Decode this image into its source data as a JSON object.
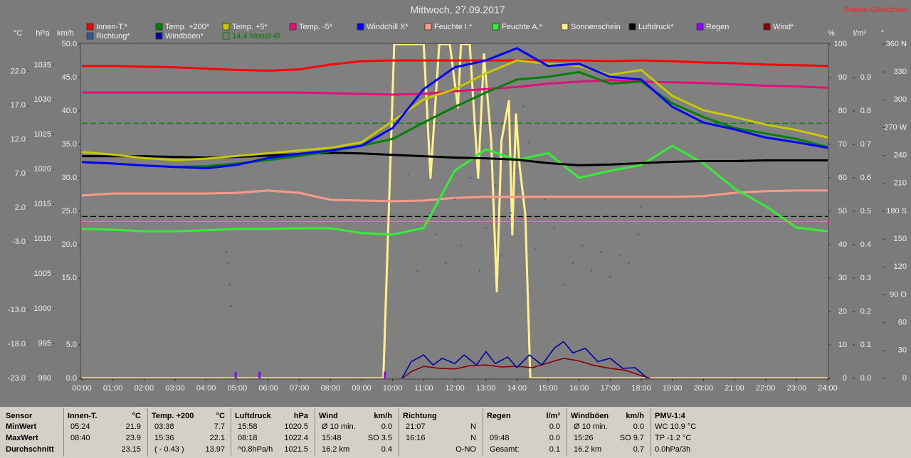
{
  "chart_data": {
    "type": "line",
    "title": "Mittwoch, 27.09.2017",
    "subtitle": "Station Gönitzhain",
    "x": [
      0,
      1,
      2,
      3,
      4,
      5,
      6,
      7,
      8,
      9,
      10,
      11,
      12,
      13,
      14,
      15,
      16,
      17,
      18,
      19,
      20,
      21,
      22,
      23,
      24
    ],
    "xlim": [
      0,
      24
    ],
    "xticks": [
      {
        "value": 0,
        "label": "00:00"
      },
      {
        "value": 1,
        "label": "01:00"
      },
      {
        "value": 2,
        "label": "02:00"
      },
      {
        "value": 3,
        "label": "03:00"
      },
      {
        "value": 4,
        "label": "04:00"
      },
      {
        "value": 5,
        "label": "05:00"
      },
      {
        "value": 6,
        "label": "06:00"
      },
      {
        "value": 7,
        "label": "07:00"
      },
      {
        "value": 8,
        "label": "08:00"
      },
      {
        "value": 9,
        "label": "09:00"
      },
      {
        "value": 10,
        "label": "10:00"
      },
      {
        "value": 11,
        "label": "11:00"
      },
      {
        "value": 12,
        "label": "12:00"
      },
      {
        "value": 13,
        "label": "13:00"
      },
      {
        "value": 14,
        "label": "14:00"
      },
      {
        "value": 15,
        "label": "15:00"
      },
      {
        "value": 16,
        "label": "16:00"
      },
      {
        "value": 17,
        "label": "17:00"
      },
      {
        "value": 18,
        "label": "18:00"
      },
      {
        "value": 19,
        "label": "19:00"
      },
      {
        "value": 20,
        "label": "20:00"
      },
      {
        "value": 21,
        "label": "21:00"
      },
      {
        "value": 22,
        "label": "22:00"
      },
      {
        "value": 23,
        "label": "23:00"
      },
      {
        "value": 24,
        "label": "24:00"
      }
    ],
    "axes": [
      {
        "label": "°C",
        "lim": [
          -23,
          26
        ],
        "ticks": [
          {
            "value": -23,
            "label": "-23.0"
          },
          {
            "value": -18,
            "label": "-18.0"
          },
          {
            "value": -13,
            "label": "-13.0"
          },
          {
            "value": -3,
            "label": "-3.0"
          },
          {
            "value": 2,
            "label": "2.0"
          },
          {
            "value": 7,
            "label": "7.0"
          },
          {
            "value": 12,
            "label": "12.0"
          },
          {
            "value": 17,
            "label": "17.0"
          },
          {
            "value": 22,
            "label": "22.0"
          }
        ]
      },
      {
        "label": "hPa",
        "lim": [
          990,
          1038
        ],
        "ticks": [
          990,
          995,
          1000,
          1005,
          1010,
          1015,
          1020,
          1025,
          1030,
          1035
        ]
      },
      {
        "label": "km/h",
        "lim": [
          0,
          50
        ],
        "ticks": [
          {
            "value": 0,
            "label": "0.0"
          },
          {
            "value": 5,
            "label": "5.0"
          },
          {
            "value": 15,
            "label": "15.0"
          },
          {
            "value": 20,
            "label": "20.0"
          },
          {
            "value": 25,
            "label": "25.0"
          },
          {
            "value": 30,
            "label": "30.0"
          },
          {
            "value": 35,
            "label": "35.0"
          },
          {
            "value": 40,
            "label": "40.0"
          },
          {
            "value": 45,
            "label": "45.0"
          },
          {
            "value": 50,
            "label": "50.0"
          }
        ]
      },
      {
        "label": "%",
        "lim": [
          0,
          100
        ],
        "ticks": [
          0,
          10,
          20,
          30,
          40,
          50,
          60,
          70,
          80,
          90,
          100
        ]
      },
      {
        "label": "l/m²",
        "lim": [
          0,
          1
        ],
        "ticks": [
          {
            "value": 0,
            "label": "0.0"
          },
          0.1,
          0.2,
          0.3,
          0.4,
          0.5,
          0.6,
          0.7,
          0.8,
          0.9
        ]
      },
      {
        "label": "°",
        "lim": [
          0,
          360
        ],
        "ticks": [
          0,
          30,
          60,
          {
            "value": 90,
            "label": "90 O"
          },
          120,
          150,
          {
            "value": 180,
            "label": "180 S"
          },
          210,
          240,
          {
            "value": 270,
            "label": "270 W"
          },
          300,
          330,
          {
            "value": 360,
            "label": "360 N"
          }
        ]
      }
    ],
    "series": [
      {
        "name": "Innen-T.*",
        "color": "#ff0000",
        "axis": "°C",
        "values": [
          22.8,
          22.8,
          22.7,
          22.6,
          22.4,
          22.2,
          22.1,
          22.3,
          23.0,
          23.5,
          23.6,
          23.6,
          23.6,
          23.6,
          23.6,
          23.6,
          23.6,
          23.5,
          23.6,
          23.5,
          23.3,
          23.2,
          23.0,
          22.9,
          22.8
        ]
      },
      {
        "name": "Temp. +200*",
        "color": "#008000",
        "axis": "°C",
        "values": [
          8.7,
          8.5,
          8.2,
          8.0,
          8.1,
          8.5,
          9.0,
          9.6,
          10.3,
          11.1,
          12.1,
          14.5,
          16.8,
          18.9,
          20.8,
          21.2,
          21.9,
          20.2,
          20.5,
          17.3,
          15.3,
          13.7,
          12.9,
          12.1,
          10.9
        ]
      },
      {
        "name": "Temp. +5*",
        "color": "#c8c800",
        "axis": "°C",
        "values": [
          10.2,
          9.8,
          9.3,
          9.0,
          9.2,
          9.6,
          10.0,
          10.4,
          10.8,
          11.6,
          14.7,
          17.9,
          19.4,
          21.7,
          23.6,
          23.1,
          22.8,
          21.5,
          22.2,
          18.4,
          16.3,
          15.3,
          14.2,
          13.4,
          12.3
        ]
      },
      {
        "name": "Temp. -5*",
        "color": "#e0107a",
        "axis": "°C",
        "values": [
          18.9,
          18.9,
          18.9,
          18.9,
          18.9,
          18.9,
          18.9,
          18.9,
          18.8,
          18.7,
          18.6,
          18.7,
          19.1,
          19.4,
          19.7,
          20.2,
          20.5,
          20.7,
          20.5,
          20.4,
          20.3,
          20.1,
          19.9,
          19.8,
          19.6
        ]
      },
      {
        "name": "Windchill X*",
        "color": "#0000ff",
        "axis": "°C",
        "values": [
          8.7,
          8.5,
          8.2,
          8.0,
          7.8,
          8.3,
          9.3,
          9.9,
          10.4,
          11.1,
          13.7,
          19.4,
          22.6,
          23.6,
          25.4,
          22.8,
          23.1,
          21.2,
          20.8,
          16.8,
          14.5,
          13.5,
          12.3,
          11.6,
          10.8
        ]
      },
      {
        "name": "Feuchte I.*",
        "color": "#ff9a8a",
        "axis": "%",
        "values": [
          54.7,
          55.3,
          55.3,
          55.3,
          55.3,
          55.5,
          56.2,
          55.5,
          53.4,
          53.2,
          53.0,
          53.2,
          54.0,
          54.3,
          54.3,
          54.3,
          54.3,
          54.3,
          54.3,
          54.3,
          54.5,
          55.5,
          56.0,
          56.2,
          56.2
        ]
      },
      {
        "name": "Feuchte A.*",
        "color": "#33ee33",
        "axis": "%",
        "values": [
          44.7,
          44.5,
          44.0,
          44.0,
          44.3,
          44.7,
          44.7,
          44.9,
          44.9,
          43.5,
          43.0,
          45.0,
          62.1,
          68.5,
          65.3,
          67.4,
          60.0,
          62.1,
          63.8,
          69.6,
          64.3,
          56.8,
          51.5,
          45.1,
          44.0
        ]
      },
      {
        "name": "Sonnenschein",
        "color": "#fff08c",
        "axis": "%",
        "x": [
          0,
          9.7,
          10.05,
          11.0,
          11.22,
          11.5,
          11.84,
          12.1,
          12.2,
          12.48,
          12.75,
          12.94,
          13.17,
          13.35,
          13.5,
          13.74,
          13.85,
          13.97,
          14.08,
          14.27,
          14.43,
          24
        ],
        "values": [
          0,
          0,
          100,
          100,
          60,
          100,
          100,
          81,
          100,
          100,
          60,
          97,
          71,
          26,
          71,
          83,
          43,
          79,
          64,
          49,
          0,
          0
        ]
      },
      {
        "name": "Luftdruck*",
        "color": "#000000",
        "axis": "hPa",
        "values": [
          1021.9,
          1021.9,
          1021.9,
          1021.8,
          1021.7,
          1021.8,
          1022.0,
          1022.2,
          1022.4,
          1022.3,
          1022.1,
          1021.9,
          1021.7,
          1021.6,
          1021.4,
          1020.9,
          1020.6,
          1020.7,
          1020.9,
          1021.1,
          1021.2,
          1021.2,
          1021.3,
          1021.3,
          1021.3
        ]
      },
      {
        "name": "Regen",
        "color": "#9000ff",
        "axis": "l/m²",
        "mark": "bars",
        "x": [
          4.95,
          5.72,
          9.75
        ],
        "values": [
          0.02,
          0.02,
          0.02
        ]
      },
      {
        "name": "Wind*",
        "color": "#8b0000",
        "axis": "km/h",
        "x": [
          10.3,
          10.6,
          11,
          11.5,
          12,
          12.5,
          13,
          13.5,
          14,
          14.5,
          15,
          15.5,
          16,
          16.5,
          17,
          17.5,
          18,
          18.3
        ],
        "values": [
          0,
          1.0,
          1.8,
          1.5,
          1.4,
          1.9,
          2.0,
          1.7,
          1.8,
          1.6,
          2.3,
          3.0,
          2.6,
          1.9,
          1.5,
          1.2,
          0.4,
          0
        ]
      },
      {
        "name": "Richtung*",
        "color": "#2c5f9e",
        "axis": "°",
        "mark": "dots",
        "x": [
          4.65,
          4.7,
          4.75,
          4.8,
          10.5,
          10.8,
          11.2,
          11.4,
          11.7,
          12,
          12.2,
          12.5,
          12.8,
          13,
          13.3,
          13.5,
          13.8,
          14,
          14.2,
          14.4,
          14.6,
          14.9,
          15.2,
          15.5,
          15.8,
          16.1,
          16.4,
          16.7,
          17,
          17.3,
          17.6,
          17.9,
          18
        ],
        "values": [
          136,
          124,
          101,
          78,
          220,
          116,
          178,
          155,
          124,
          193,
          143,
          216,
          116,
          162,
          208,
          132,
          178,
          224,
          293,
          254,
          139,
          193,
          162,
          101,
          124,
          143,
          116,
          136,
          109,
          132,
          124,
          155,
          185
        ]
      },
      {
        "name": "Windböen*",
        "color": "#0000aa",
        "axis": "km/h",
        "x": [
          10.3,
          10.6,
          11,
          11.3,
          11.6,
          12,
          12.3,
          12.7,
          13,
          13.3,
          13.7,
          14,
          14.4,
          14.8,
          15.2,
          15.5,
          15.8,
          16.2,
          16.6,
          17,
          17.4,
          17.8,
          18.2
        ],
        "values": [
          0,
          2.5,
          3.5,
          2.0,
          3.0,
          2.2,
          3.5,
          2.0,
          4.0,
          2.2,
          3.2,
          1.6,
          3.5,
          2.0,
          4.5,
          5.5,
          3.8,
          4.5,
          2.5,
          3.0,
          1.5,
          1.6,
          0
        ]
      }
    ],
    "reference_lines": [
      {
        "name": "14.4 Monat-Ø",
        "value": 14.4,
        "axis": "°C",
        "color": "#008000",
        "dashed": true
      },
      {
        "value": 1013.25,
        "axis": "hPa",
        "color": "#000000",
        "dashed": true
      },
      {
        "value": 0,
        "axis": "°C",
        "color": "#40c0c0",
        "dashed": false
      }
    ]
  },
  "table": {
    "groups": [
      {
        "header": "Sensor",
        "rows": [
          "MinWert",
          "MaxWert",
          "Durchschnitt"
        ]
      },
      {
        "header": "Innen-T.",
        "unit": "°C",
        "rows": [
          {
            "left": "05:24",
            "right": "21.9"
          },
          {
            "left": "08:40",
            "right": "23.9"
          },
          {
            "right": "23.15"
          }
        ]
      },
      {
        "header": "Temp. +200",
        "unit": "°C",
        "rows": [
          {
            "left": "03:38",
            "right": "7.7"
          },
          {
            "left": "15:36",
            "right": "22.1"
          },
          {
            "left": "( - 0.43 )",
            "right": "13.97"
          }
        ]
      },
      {
        "header": "Luftdruck",
        "unit": "hPa",
        "rows": [
          {
            "left": "15:58",
            "right": "1020.5"
          },
          {
            "left": "08:18",
            "right": "1022.4"
          },
          {
            "left": "^0.8hPa/h",
            "right": "1021.5"
          }
        ]
      },
      {
        "header": "Wind",
        "unit": "km/h",
        "rows": [
          {
            "left": "Ø 10 min.",
            "right": "0.0"
          },
          {
            "left": "15:48",
            "right": "SO 3.5"
          },
          {
            "left": "16.2 km",
            "right": "0.4"
          }
        ]
      },
      {
        "header": "Richtung",
        "rows": [
          {
            "left": "21:07",
            "right": "N"
          },
          {
            "left": "16:16",
            "right": "N"
          },
          {
            "right": "O-NO"
          }
        ]
      },
      {
        "header": "Regen",
        "unit": "l/m²",
        "rows": [
          {
            "right": "0.0"
          },
          {
            "left": "09:48",
            "right": "0.0"
          },
          {
            "left": "Gesamt:",
            "right": "0.1"
          }
        ]
      },
      {
        "header": "Windböen",
        "unit": "km/h",
        "rows": [
          {
            "left": "Ø 10 min.",
            "right": "0.0"
          },
          {
            "left": "15:26",
            "right": "SO 9.7"
          },
          {
            "left": "16.2 km",
            "right": "0.7"
          }
        ]
      },
      {
        "header": "PMV-1:4",
        "rows": [
          "WC 10.9 °C",
          "TP -1.2 °C",
          "0.0hPa/3h"
        ]
      }
    ]
  }
}
